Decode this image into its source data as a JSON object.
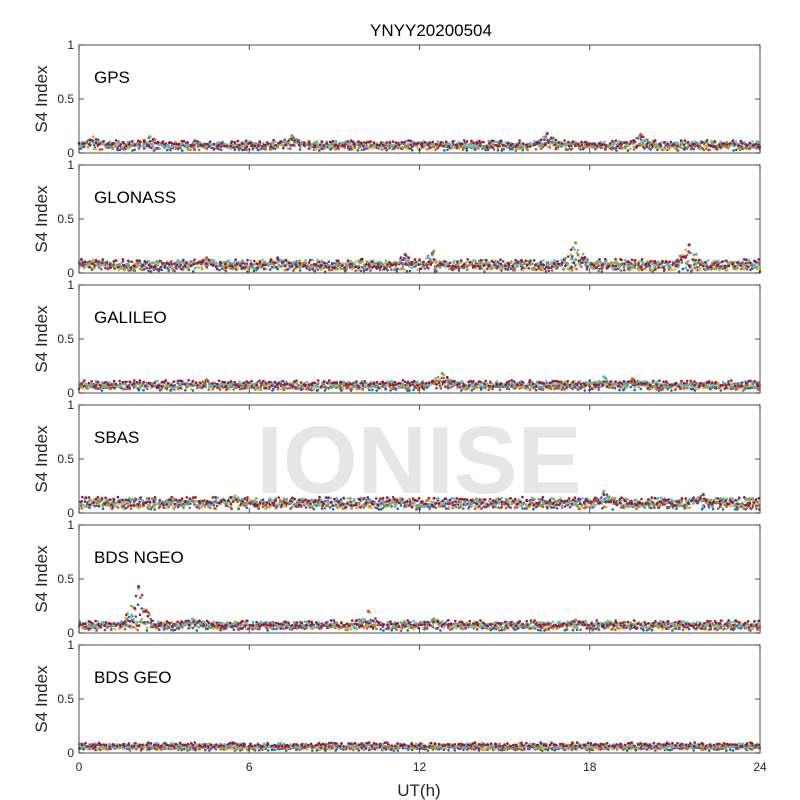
{
  "chart_data": {
    "type": "scatter",
    "title": "YNYY20200504",
    "watermark": "IONISE",
    "xlabel": "UT(h)",
    "ylabel": "S4 Index",
    "xlim": [
      0,
      24
    ],
    "ylim": [
      0,
      1
    ],
    "xticks": [
      "0",
      "6",
      "12",
      "18",
      "24"
    ],
    "yticks": [
      "0",
      "0.5",
      "1"
    ],
    "grid": false,
    "series_colors": [
      "#0072BD",
      "#D95319",
      "#EDB120",
      "#7E2F8E",
      "#77AC30",
      "#4DBEEE",
      "#A2142F"
    ],
    "panels": [
      {
        "label": "GPS",
        "baseline": 0.07,
        "spread": 0.03,
        "bumps": [
          {
            "x": 0.5,
            "y": 0.15
          },
          {
            "x": 2.5,
            "y": 0.15
          },
          {
            "x": 7.5,
            "y": 0.16
          },
          {
            "x": 16.5,
            "y": 0.18
          },
          {
            "x": 19.8,
            "y": 0.17
          }
        ]
      },
      {
        "label": "GLONASS",
        "baseline": 0.07,
        "spread": 0.04,
        "bumps": [
          {
            "x": 0.5,
            "y": 0.12
          },
          {
            "x": 4.5,
            "y": 0.14
          },
          {
            "x": 7.0,
            "y": 0.14
          },
          {
            "x": 11.5,
            "y": 0.17
          },
          {
            "x": 12.5,
            "y": 0.2
          },
          {
            "x": 17.5,
            "y": 0.28
          },
          {
            "x": 21.5,
            "y": 0.26
          }
        ]
      },
      {
        "label": "GALILEO",
        "baseline": 0.07,
        "spread": 0.03,
        "bumps": [
          {
            "x": 4.5,
            "y": 0.12
          },
          {
            "x": 12.8,
            "y": 0.18
          },
          {
            "x": 18.5,
            "y": 0.15
          },
          {
            "x": 19.5,
            "y": 0.13
          }
        ]
      },
      {
        "label": "SBAS",
        "baseline": 0.09,
        "spread": 0.04,
        "bumps": [
          {
            "x": 5.5,
            "y": 0.16
          },
          {
            "x": 18.5,
            "y": 0.2
          },
          {
            "x": 22.0,
            "y": 0.17
          }
        ]
      },
      {
        "label": "BDS NGEO",
        "baseline": 0.07,
        "spread": 0.03,
        "bumps": [
          {
            "x": 2.1,
            "y": 0.43
          },
          {
            "x": 10.2,
            "y": 0.2
          },
          {
            "x": 4.0,
            "y": 0.13
          },
          {
            "x": 12.5,
            "y": 0.13
          },
          {
            "x": 17.5,
            "y": 0.12
          }
        ]
      },
      {
        "label": "BDS GEO",
        "baseline": 0.06,
        "spread": 0.02,
        "bumps": []
      }
    ]
  }
}
